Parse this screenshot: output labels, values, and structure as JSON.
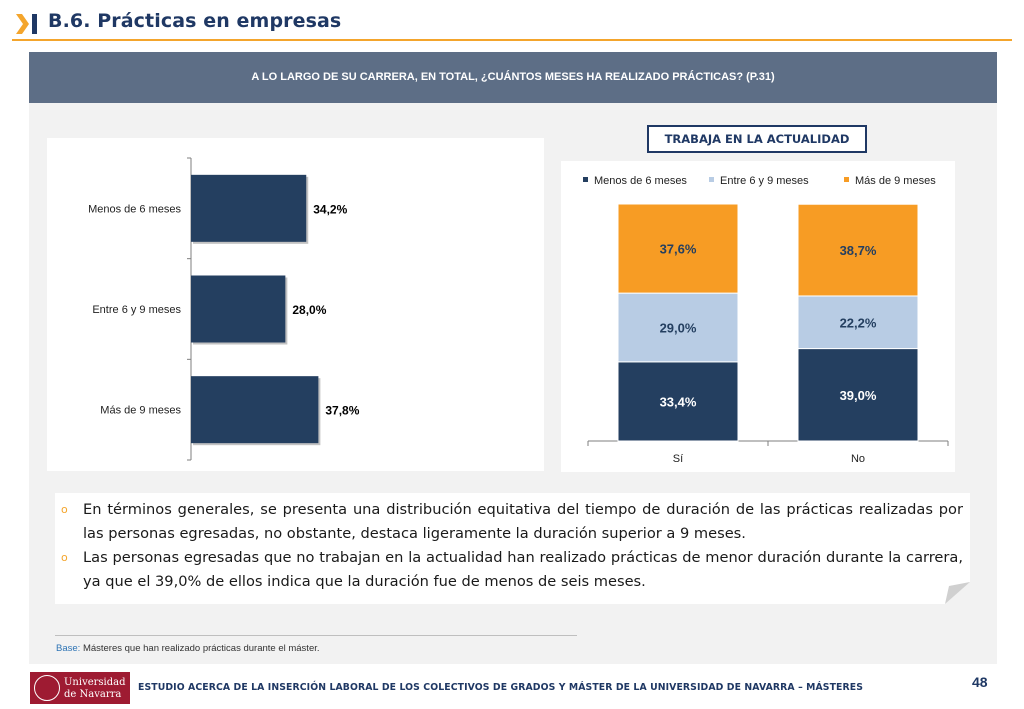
{
  "header": {
    "title": "B.6. Prácticas en empresas"
  },
  "question": "A LO LARGO DE SU CARRERA, EN TOTAL, ¿CUÁNTOS MESES HA REALIZADO PRÁCTICAS? (P.31)",
  "segment_title": "TRABAJA EN LA ACTUALIDAD",
  "colors": {
    "navy": "#243f60",
    "light_blue": "#b8cce4",
    "orange": "#f79c24",
    "accent": "#f4a52c"
  },
  "chart_data": [
    {
      "type": "bar",
      "orientation": "horizontal",
      "categories": [
        "Menos de 6 meses",
        "Entre 6 y 9 meses",
        "Más de 9 meses"
      ],
      "values": [
        34.2,
        28.0,
        37.8
      ],
      "labels": [
        "34,2%",
        "28,0%",
        "37,8%"
      ],
      "xlim": [
        0,
        100
      ],
      "grid": false,
      "legend": "none"
    },
    {
      "type": "bar",
      "stacked": true,
      "categories": [
        "Sí",
        "No"
      ],
      "series": [
        {
          "name": "Menos de 6 meses",
          "values": [
            33.4,
            39.0
          ],
          "labels": [
            "33,4%",
            "39,0%"
          ]
        },
        {
          "name": "Entre 6 y 9 meses",
          "values": [
            29.0,
            22.2
          ],
          "labels": [
            "29,0%",
            "22,2%"
          ]
        },
        {
          "name": "Más de 9 meses",
          "values": [
            37.6,
            38.7
          ],
          "labels": [
            "37,6%",
            "38,7%"
          ]
        }
      ],
      "ylim": [
        0,
        100
      ],
      "grid": false,
      "legend": "top"
    }
  ],
  "bullets": [
    "En términos generales, se presenta una distribución equitativa del tiempo de duración de las prácticas realizadas por las personas egresadas, no obstante, destaca ligeramente la duración superior a 9 meses.",
    "Las personas egresadas que no trabajan en la actualidad han realizado prácticas de menor duración durante la carrera, ya que el 39,0% de ellos indica que la duración fue de menos de seis meses."
  ],
  "base": {
    "label": "Base:",
    "text": "Másteres que han realizado prácticas durante el máster."
  },
  "footer": {
    "logo_line1": "Universidad",
    "logo_line2": "de Navarra",
    "text": "ESTUDIO ACERCA DE LA INSERCIÓN LABORAL DE LOS COLECTIVOS DE GRADOS Y MÁSTER DE LA UNIVERSIDAD DE NAVARRA – MÁSTERES",
    "page": "48"
  }
}
